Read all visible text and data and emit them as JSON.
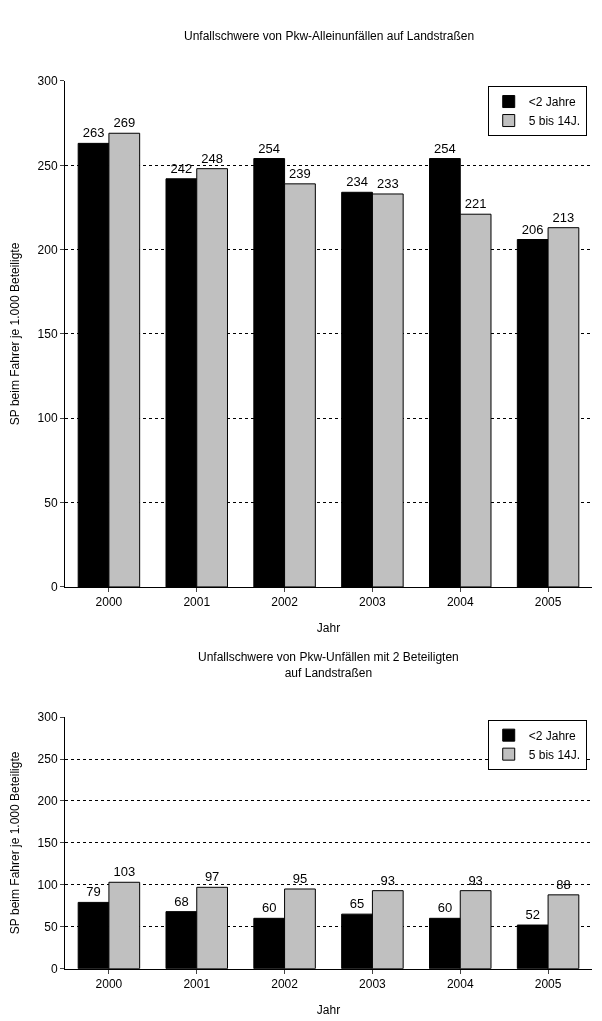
{
  "chart_data": [
    {
      "type": "bar",
      "title": "Unfallschwere von Pkw-Alleinunfällen auf Landstraßen",
      "xlabel": "Jahr",
      "ylabel": "SP beim Fahrer je 1.000 Beteiligte",
      "categories": [
        "2000",
        "2001",
        "2002",
        "2003",
        "2004",
        "2005"
      ],
      "series": [
        {
          "name": "<2 Jahre",
          "color": "#000000",
          "values": [
            263,
            242,
            254,
            234,
            254,
            206
          ]
        },
        {
          "name": "5 bis 14J.",
          "color": "#c0c0c0",
          "values": [
            269,
            248,
            239,
            233,
            221,
            213
          ]
        }
      ],
      "ylim": [
        0,
        300
      ],
      "yticks": [
        0,
        50,
        100,
        150,
        200,
        250,
        300
      ],
      "grid": "y",
      "legend": "top right",
      "data_labels": true
    },
    {
      "type": "bar",
      "title": "Unfallschwere von Pkw-Unfällen mit 2 Beteiligten\nauf Landstraßen",
      "xlabel": "Jahr",
      "ylabel": "SP beim Fahrer je 1.000 Beteiligte",
      "categories": [
        "2000",
        "2001",
        "2002",
        "2003",
        "2004",
        "2005"
      ],
      "series": [
        {
          "name": "<2 Jahre",
          "color": "#000000",
          "values": [
            79,
            68,
            60,
            65,
            60,
            52
          ]
        },
        {
          "name": "5 bis 14J.",
          "color": "#c0c0c0",
          "values": [
            103,
            97,
            95,
            93,
            93,
            88
          ]
        }
      ],
      "ylim": [
        0,
        300
      ],
      "yticks": [
        0,
        50,
        100,
        150,
        200,
        250,
        300
      ],
      "grid": "y",
      "legend": "top right",
      "data_labels": true
    }
  ]
}
